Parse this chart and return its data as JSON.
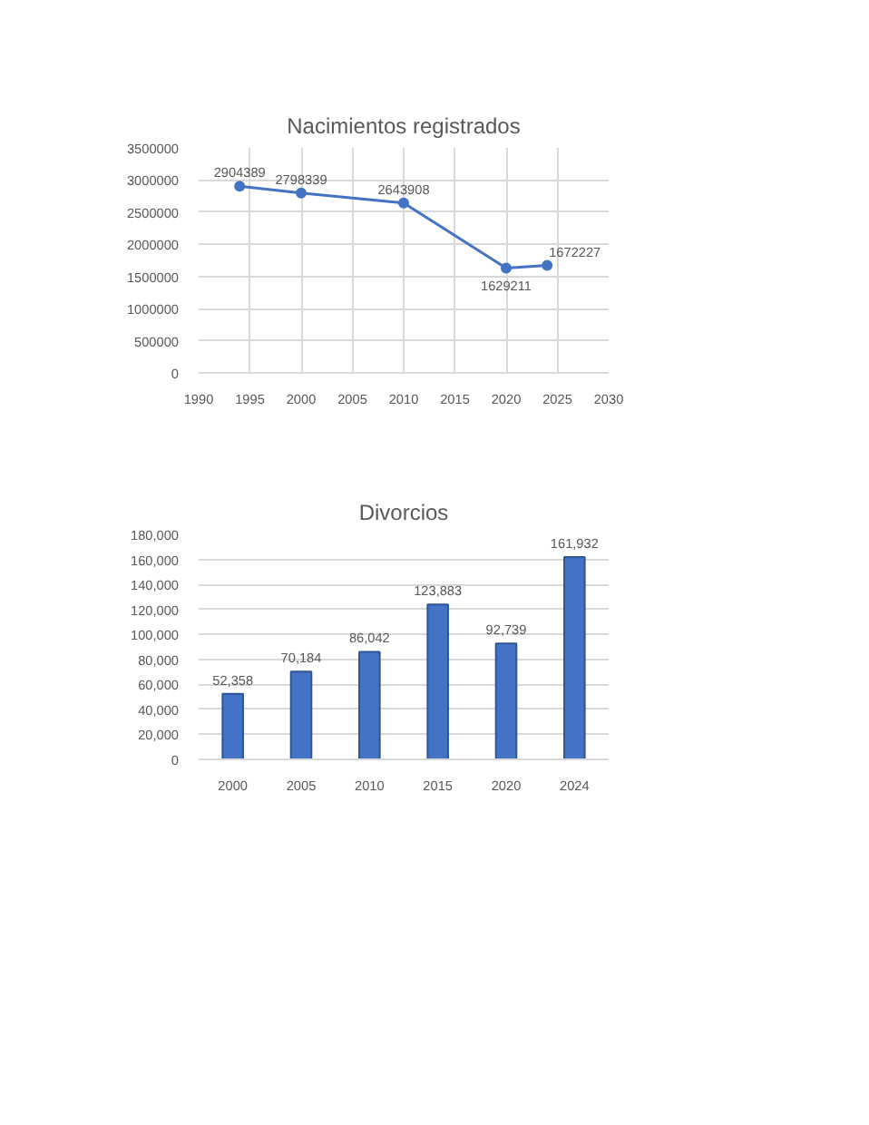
{
  "chart_data": [
    {
      "type": "line",
      "title": "Nacimientos registrados",
      "x": [
        1994,
        2000,
        2010,
        2020,
        2024
      ],
      "series": [
        {
          "color": "#4472c4",
          "values": [
            2904389,
            2798339,
            2643908,
            1629211,
            1672227
          ]
        }
      ],
      "xlim": [
        1990,
        2030
      ],
      "xticks": [
        1990,
        1995,
        2000,
        2005,
        2010,
        2015,
        2020,
        2025,
        2030
      ],
      "ylim": [
        0,
        3500000
      ],
      "yticks": [
        0,
        500000,
        1000000,
        1500000,
        2000000,
        2500000,
        3000000,
        3500000
      ],
      "grid": true,
      "marker": "circle",
      "data_labels": true
    },
    {
      "type": "bar",
      "title": "Divorcios",
      "categories": [
        "2000",
        "2005",
        "2010",
        "2015",
        "2020",
        "2024"
      ],
      "series": [
        {
          "color": "#4472c4",
          "values": [
            52358,
            70184,
            86042,
            123883,
            92739,
            161932
          ]
        }
      ],
      "value_labels": [
        "52,358",
        "70,184",
        "86,042",
        "123,883",
        "92,739",
        "161,932"
      ],
      "ylim": [
        0,
        180000
      ],
      "yticks": [
        {
          "value": 0,
          "label": "0"
        },
        {
          "value": 20000,
          "label": "20,000"
        },
        {
          "value": 40000,
          "label": "40,000"
        },
        {
          "value": 60000,
          "label": "60,000"
        },
        {
          "value": 80000,
          "label": "80,000"
        },
        {
          "value": 100000,
          "label": "100,000"
        },
        {
          "value": 120000,
          "label": "120,000"
        },
        {
          "value": 140000,
          "label": "140,000"
        },
        {
          "value": 160000,
          "label": "160,000"
        },
        {
          "value": 180000,
          "label": "180,000"
        }
      ],
      "grid": "y"
    }
  ]
}
